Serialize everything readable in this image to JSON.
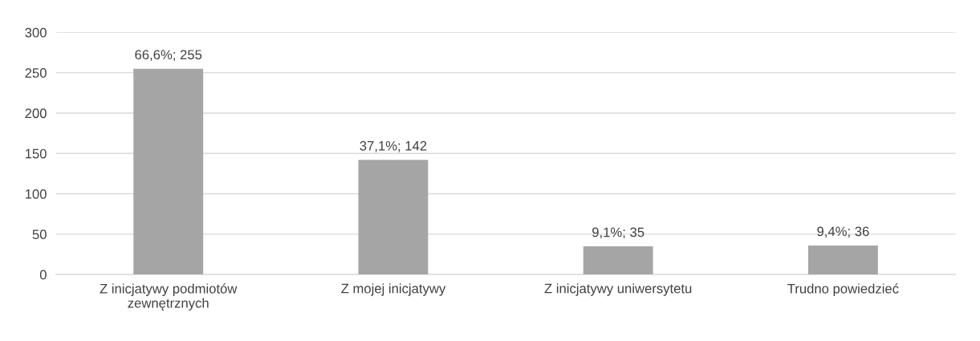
{
  "chart_data": {
    "type": "bar",
    "categories": [
      "Z inicjatywy podmiotów\nzewnętrznych",
      "Z mojej inicjatywy",
      "Z inicjatywy uniwersytetu",
      "Trudno powiedzieć"
    ],
    "values": [
      255,
      142,
      35,
      36
    ],
    "value_labels": [
      "66,6%; 255",
      "37,1%; 142",
      "9,1%; 35",
      "9,4%; 36"
    ],
    "color": "#a5a5a5",
    "ylim": [
      0,
      300
    ],
    "yticks": [
      0,
      50,
      100,
      150,
      200,
      250,
      300
    ],
    "grid": "y",
    "legend": false
  }
}
